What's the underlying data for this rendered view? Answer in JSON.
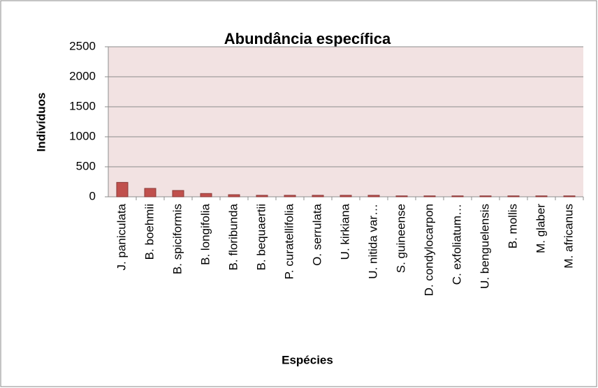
{
  "chart_data": {
    "type": "bar",
    "title": "Abundância específica",
    "x_label": "Espécies",
    "y_label": "Indivíduos",
    "categories": [
      "J. paniculata",
      "B. boehmii",
      "B. spiciformis",
      "B. longifolia",
      "B. floribunda",
      "B. bequaertii",
      "P. curatellifolia",
      "O. serrulata",
      "U. kirkiana",
      "U. nitida var…",
      "S. guineense",
      "D. condylocarpon",
      "C. exfoliatum…",
      "U. benguelensis",
      "B. mollis",
      "M. glaber",
      "M. africanus"
    ],
    "values": [
      240,
      140,
      105,
      55,
      35,
      25,
      25,
      25,
      25,
      25,
      15,
      15,
      15,
      15,
      15,
      15,
      15
    ],
    "color": "#c0504d",
    "ylim": [
      0,
      2500
    ],
    "yticks": [
      0,
      500,
      1000,
      1500,
      2000,
      2500
    ],
    "grid": true
  }
}
